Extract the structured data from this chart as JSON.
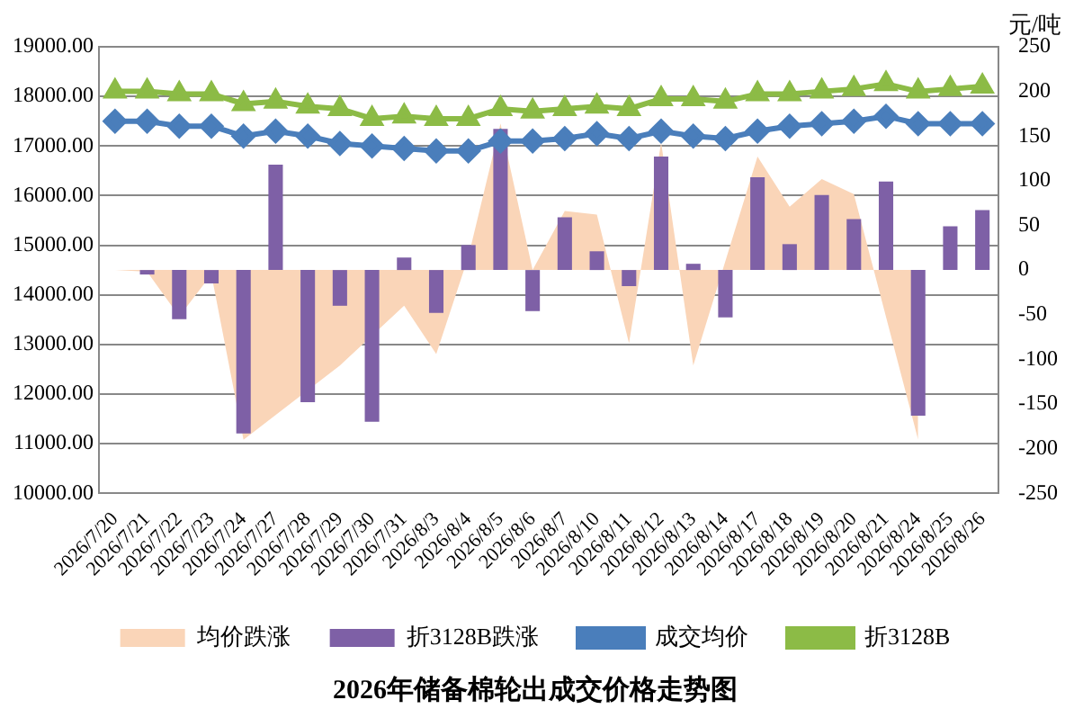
{
  "chart_data": {
    "type": "line",
    "title": "2026年储备棉轮出成交价格走势图",
    "annotations": [
      "元/吨"
    ],
    "categories": [
      "2026/7/20",
      "2026/7/21",
      "2026/7/22",
      "2026/7/23",
      "2026/7/24",
      "2026/7/27",
      "2026/7/28",
      "2026/7/29",
      "2026/7/30",
      "2026/7/31",
      "2026/8/3",
      "2026/8/4",
      "2026/8/5",
      "2026/8/6",
      "2026/8/7",
      "2026/8/10",
      "2026/8/11",
      "2026/8/12",
      "2026/8/13",
      "2026/8/14",
      "2026/8/17",
      "2026/8/18",
      "2026/8/19",
      "2026/8/20",
      "2026/8/21",
      "2026/8/24",
      "2026/8/25",
      "2026/8/26"
    ],
    "series": [
      {
        "name": "均价跌涨",
        "type": "area",
        "axis": "y2",
        "color": "#fad5b8",
        "values": [
          0,
          -2,
          -52,
          -5,
          -190,
          null,
          null,
          -107,
          null,
          -40,
          -94,
          15,
          164,
          0,
          66,
          62,
          -82,
          143,
          -107,
          null,
          127,
          71,
          102,
          85,
          null,
          -190,
          null,
          null
        ]
      },
      {
        "name": "折3128B跌涨",
        "type": "bar",
        "axis": "y2",
        "color": "#7e60a6",
        "values": [
          0,
          -5,
          -55,
          -15,
          -183,
          118,
          -148,
          -40,
          -170,
          14,
          -48,
          28,
          158,
          -46,
          59,
          21,
          -18,
          127,
          7,
          -53,
          104,
          29,
          84,
          57,
          99,
          -163,
          49,
          67
        ]
      },
      {
        "name": "成交均价",
        "marker": "diamond",
        "color": "#4a7ebb",
        "values": [
          17500,
          17500,
          17400,
          17400,
          17200,
          17300,
          17200,
          17050,
          17000,
          16950,
          16900,
          16900,
          17100,
          17100,
          17150,
          17250,
          17150,
          17300,
          17200,
          17150,
          17300,
          17400,
          17450,
          17500,
          17600,
          17450,
          17450,
          17450
        ]
      },
      {
        "name": "折3128B",
        "marker": "triangle",
        "color": "#8cbb46",
        "values": [
          18100,
          18100,
          18050,
          18050,
          17850,
          17900,
          17800,
          17750,
          17550,
          17600,
          17550,
          17550,
          17750,
          17700,
          17750,
          17800,
          17750,
          17950,
          17950,
          17900,
          18050,
          18050,
          18100,
          18150,
          18250,
          18100,
          18150,
          18200
        ]
      }
    ],
    "ylim": [
      10000,
      19000
    ],
    "yticks": [
      {
        "value": 10000,
        "label": "10000.00"
      },
      {
        "value": 11000,
        "label": "11000.00"
      },
      {
        "value": 12000,
        "label": "12000.00"
      },
      {
        "value": 13000,
        "label": "13000.00"
      },
      {
        "value": 14000,
        "label": "14000.00"
      },
      {
        "value": 15000,
        "label": "15000.00"
      },
      {
        "value": 16000,
        "label": "16000.00"
      },
      {
        "value": 17000,
        "label": "17000.00"
      },
      {
        "value": 18000,
        "label": "18000.00"
      },
      {
        "value": 19000,
        "label": "19000.00"
      }
    ],
    "y2lim": [
      -250,
      250
    ],
    "y2ticks": [
      -250,
      -200,
      -150,
      -100,
      -50,
      0,
      50,
      100,
      150,
      200,
      250
    ],
    "grid": "y",
    "legend": "bottom"
  }
}
